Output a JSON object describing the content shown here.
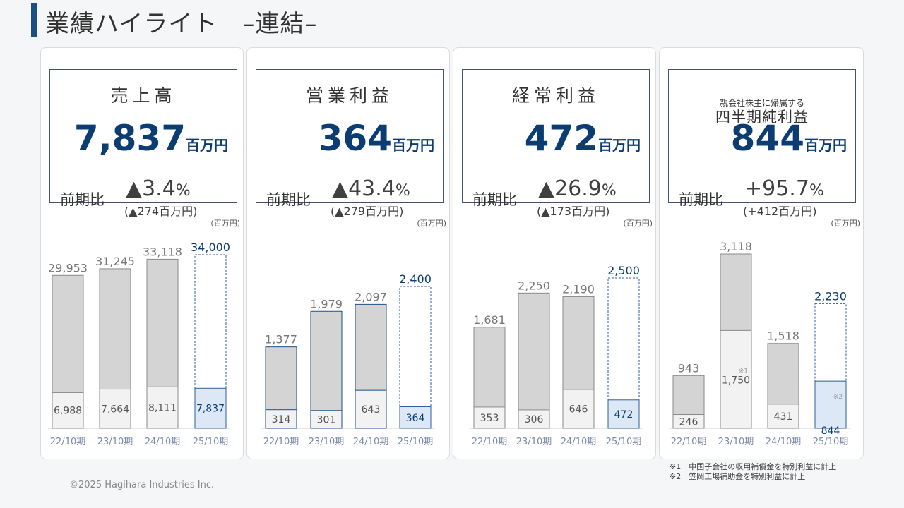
{
  "title": "業績ハイライト　–連結–",
  "cards": [
    {
      "title": "売上高",
      "big": "7,837",
      "unit": "百万円",
      "zenki": "前期比",
      "pct": "▲3.4",
      "pct_unit": "%",
      "amt": "(▲274百万円)",
      "yunit": "(百万円)"
    },
    {
      "title": "営業利益",
      "big": "364",
      "unit": "百万円",
      "zenki": "前期比",
      "pct": "▲43.4",
      "pct_unit": "%",
      "amt": "(▲279百万円)",
      "yunit": "(百万円)"
    },
    {
      "title": "経常利益",
      "big": "472",
      "unit": "百万円",
      "zenki": "前期比",
      "pct": "▲26.9",
      "pct_unit": "%",
      "amt": "(▲173百万円)",
      "yunit": "(百万円)"
    },
    {
      "title_sub": "親会社株主に帰属する",
      "title": "四半期純利益",
      "big": "844",
      "unit": "百万円",
      "zenki": "前期比",
      "pct": "+95.7",
      "pct_unit": "%",
      "amt": "(+412百万円)",
      "yunit": "(百万円)"
    }
  ],
  "chart_data": [
    {
      "type": "bar",
      "categories": [
        "22/10期",
        "23/10期",
        "24/10期",
        "25/10期"
      ],
      "series": [
        {
          "values": [
            29953,
            31245,
            33118,
            34000
          ]
        },
        {
          "values": [
            6988,
            7664,
            8111,
            7837
          ]
        }
      ],
      "value_labels": [
        "29,953",
        "31,245",
        "33,118",
        "34,000"
      ],
      "q_labels": [
        "6,988",
        "7,664",
        "8,111",
        "7,837"
      ]
    },
    {
      "type": "bar",
      "categories": [
        "22/10期",
        "23/10期",
        "24/10期",
        "25/10期"
      ],
      "series": [
        {
          "values": [
            1377,
            1979,
            2097,
            2400
          ]
        },
        {
          "values": [
            314,
            301,
            643,
            364
          ]
        }
      ],
      "value_labels": [
        "1,377",
        "1,979",
        "2,097",
        "2,400"
      ],
      "q_labels": [
        "314",
        "301",
        "643",
        "364"
      ]
    },
    {
      "type": "bar",
      "categories": [
        "22/10期",
        "23/10期",
        "24/10期",
        "25/10期"
      ],
      "series": [
        {
          "values": [
            1681,
            2250,
            2190,
            2500
          ]
        },
        {
          "values": [
            353,
            306,
            646,
            472
          ]
        }
      ],
      "value_labels": [
        "1,681",
        "2,250",
        "2,190",
        "2,500"
      ],
      "q_labels": [
        "353",
        "306",
        "646",
        "472"
      ]
    },
    {
      "type": "bar",
      "categories": [
        "22/10期",
        "23/10期",
        "24/10期",
        "25/10期"
      ],
      "series": [
        {
          "values": [
            943,
            3118,
            1518,
            2230
          ]
        },
        {
          "values": [
            246,
            1750,
            431,
            844
          ]
        }
      ],
      "value_labels": [
        "943",
        "3,118",
        "1,518",
        "2,230"
      ],
      "q_labels": [
        "246",
        "1,750",
        "431",
        "844"
      ],
      "notes_marks": [
        "",
        "※1",
        "",
        "※2"
      ]
    }
  ],
  "colors": {
    "accent": "#1d4f87",
    "big_number": "#0b3d73",
    "bar_past": "#d4d4d4",
    "bar_past_q": "#f2f2f2",
    "forecast_edge": "#2f5f9a",
    "forecast_q": "#dce8f6"
  },
  "notes": [
    "※1　中国子会社の収用補償金を特別利益に計上",
    "※2　笠岡工場補助金を特別利益に計上"
  ],
  "copyright": "©2025 Hagihara Industries Inc."
}
